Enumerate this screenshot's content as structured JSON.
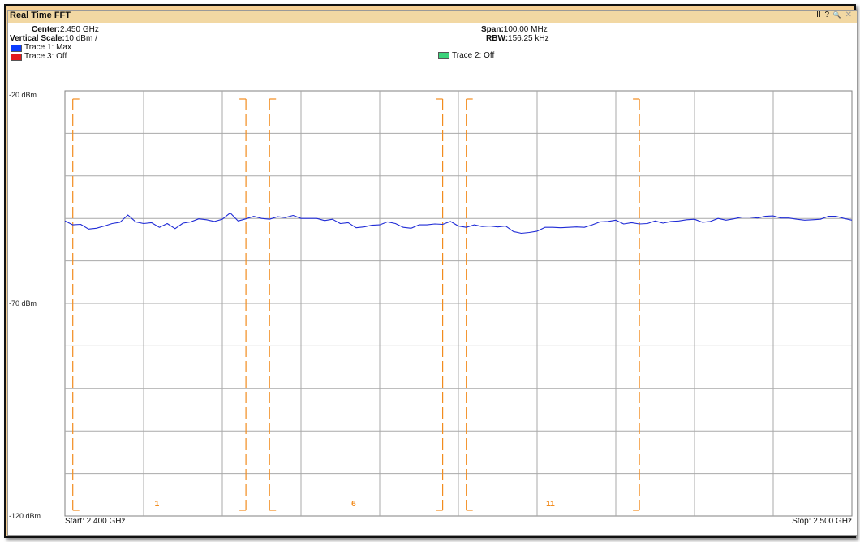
{
  "window": {
    "title": "Real Time FFT",
    "controls": {
      "pause": "II",
      "help": "?",
      "zoom": "🔍",
      "close": "✕"
    }
  },
  "header": {
    "center_label": "Center:",
    "center_value": "2.450 GHz",
    "vscale_label": "Vertical Scale:",
    "vscale_value": "10 dBm /",
    "span_label": "Span:",
    "span_value": "100.00 MHz",
    "rbw_label": "RBW:",
    "rbw_value": "156.25 kHz",
    "traces": [
      {
        "name": "Trace 1: Max",
        "color": "#0a3cff"
      },
      {
        "name": "Trace 2: Off",
        "color": "#3cd27a"
      },
      {
        "name": "Trace 3: Off",
        "color": "#e31a1a"
      }
    ]
  },
  "footer": {
    "start": "Start: 2.400 GHz",
    "stop": "Stop: 2.500 GHz"
  },
  "chart_data": {
    "type": "line",
    "x_unit": "GHz",
    "xlim": [
      2.4,
      2.5
    ],
    "ylim": [
      -120,
      -20
    ],
    "y_tick_labels": [
      "-20 dBm",
      "-70 dBm",
      "-120 dBm"
    ],
    "grid": true,
    "series": [
      {
        "name": "Trace 1: Max",
        "color": "#1f2bd6",
        "x": [
          2.4,
          2.401,
          2.402,
          2.403,
          2.404,
          2.405,
          2.406,
          2.407,
          2.408,
          2.409,
          2.41,
          2.411,
          2.412,
          2.413,
          2.414,
          2.415,
          2.416,
          2.417,
          2.418,
          2.419,
          2.42,
          2.421,
          2.422,
          2.423,
          2.424,
          2.425,
          2.426,
          2.427,
          2.428,
          2.429,
          2.43,
          2.431,
          2.432,
          2.433,
          2.434,
          2.435,
          2.436,
          2.437,
          2.438,
          2.439,
          2.44,
          2.441,
          2.442,
          2.443,
          2.444,
          2.445,
          2.446,
          2.447,
          2.448,
          2.449,
          2.45,
          2.451,
          2.452,
          2.453,
          2.454,
          2.455,
          2.456,
          2.457,
          2.458,
          2.459,
          2.46,
          2.461,
          2.462,
          2.463,
          2.464,
          2.465,
          2.466,
          2.467,
          2.468,
          2.469,
          2.47,
          2.471,
          2.472,
          2.473,
          2.474,
          2.475,
          2.476,
          2.477,
          2.478,
          2.479,
          2.48,
          2.481,
          2.482,
          2.483,
          2.484,
          2.485,
          2.486,
          2.487,
          2.488,
          2.489,
          2.49,
          2.491,
          2.492,
          2.493,
          2.494,
          2.495,
          2.496,
          2.497,
          2.498,
          2.499,
          2.5
        ],
        "y": [
          -50.6,
          -51.5,
          -51.4,
          -52.5,
          -52.3,
          -51.8,
          -51.2,
          -50.9,
          -49.2,
          -50.8,
          -51.2,
          -51.0,
          -52.1,
          -51.2,
          -52.4,
          -51.1,
          -50.8,
          -50.1,
          -50.3,
          -50.7,
          -50.2,
          -48.7,
          -50.6,
          -50.1,
          -49.5,
          -50.0,
          -50.2,
          -49.6,
          -49.8,
          -49.3,
          -50.0,
          -50.0,
          -50.0,
          -50.5,
          -50.2,
          -51.2,
          -51.0,
          -52.2,
          -52.0,
          -51.6,
          -51.5,
          -50.8,
          -51.2,
          -52.1,
          -52.3,
          -51.5,
          -51.5,
          -51.3,
          -51.4,
          -50.7,
          -51.8,
          -52.1,
          -51.5,
          -51.9,
          -51.8,
          -52.0,
          -51.8,
          -53.1,
          -53.5,
          -53.3,
          -53.0,
          -52.1,
          -52.1,
          -52.2,
          -52.1,
          -52.0,
          -52.1,
          -51.5,
          -50.8,
          -50.7,
          -50.4,
          -51.3,
          -51.0,
          -51.3,
          -51.2,
          -50.6,
          -51.1,
          -50.7,
          -50.6,
          -50.3,
          -50.2,
          -50.9,
          -50.7,
          -50.0,
          -50.4,
          -50.1,
          -49.7,
          -49.7,
          -49.9,
          -49.5,
          -49.4,
          -49.9,
          -49.9,
          -50.2,
          -50.4,
          -50.3,
          -50.2,
          -49.5,
          -49.5,
          -50.0,
          -50.4
        ]
      }
    ],
    "wifi_channels": [
      {
        "label": "1",
        "low": 2.401,
        "high": 2.423
      },
      {
        "label": "6",
        "low": 2.426,
        "high": 2.448
      },
      {
        "label": "11",
        "low": 2.451,
        "high": 2.473
      }
    ]
  }
}
